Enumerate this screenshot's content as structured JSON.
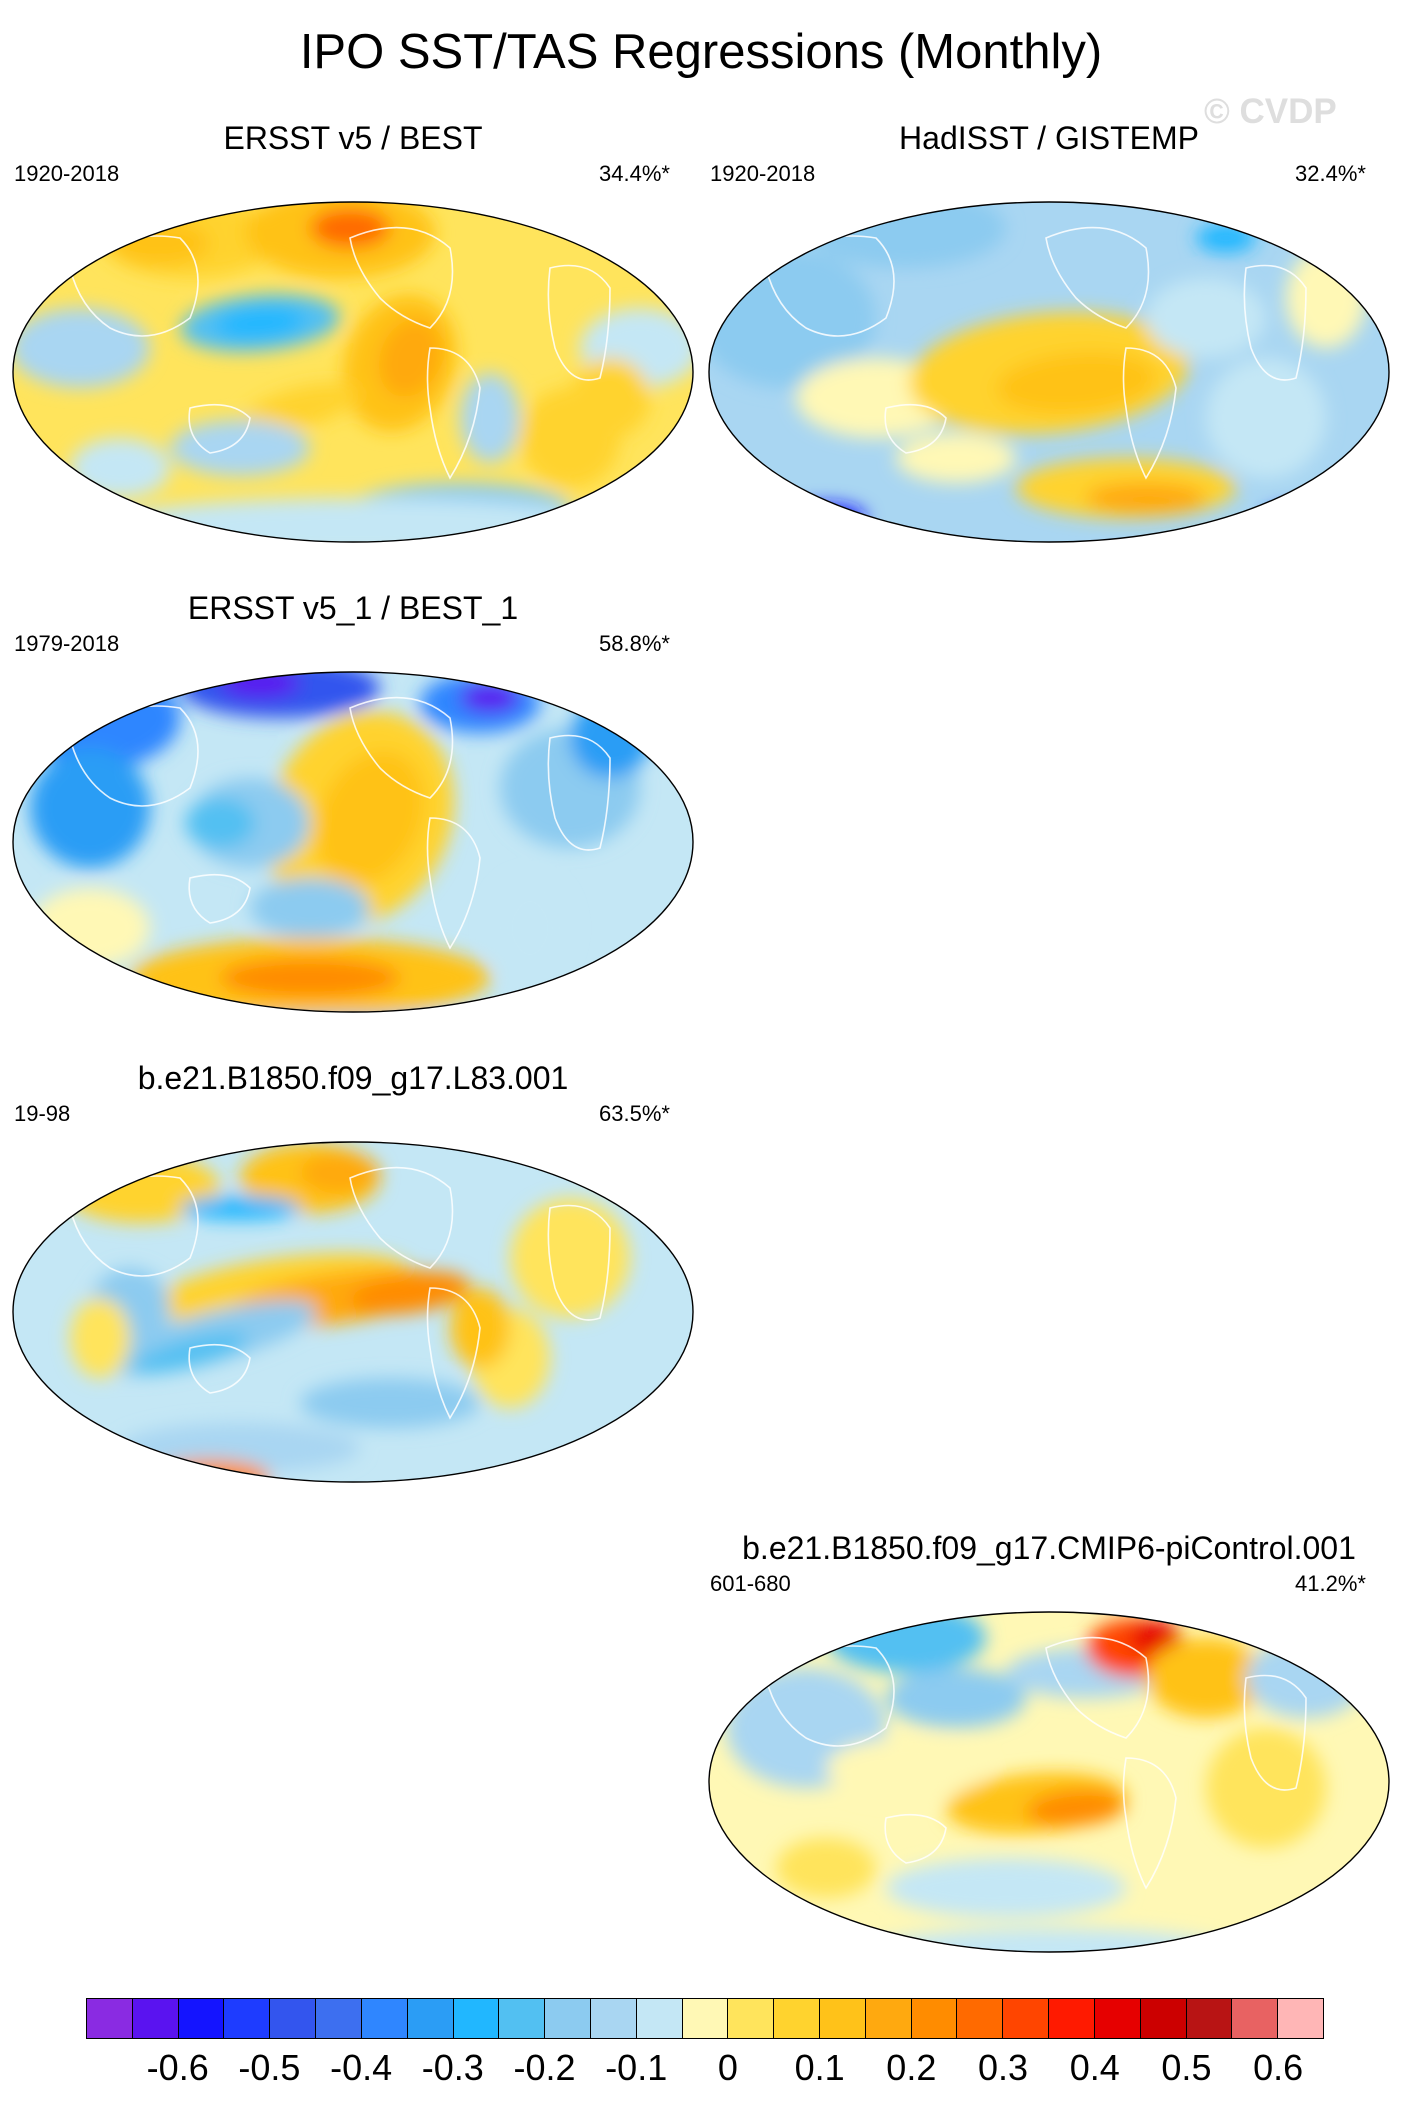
{
  "figure": {
    "title": "IPO SST/TAS Regressions (Monthly)",
    "watermark": "© CVDP"
  },
  "panels": [
    {
      "title": "ERSST v5 / BEST",
      "period": "1920-2018",
      "variance": "34.4%*"
    },
    {
      "title": "HadISST / GISTEMP",
      "period": "1920-2018",
      "variance": "32.4%*"
    },
    {
      "title": "ERSST v5_1 / BEST_1",
      "period": "1979-2018",
      "variance": "58.8%*"
    },
    {
      "title": "b.e21.B1850.f09_g17.L83.001",
      "period": "19-98",
      "variance": "63.5%*"
    },
    {
      "title": "b.e21.B1850.f09_g17.CMIP6-piControl.001",
      "period": "601-680",
      "variance": "41.2%*"
    }
  ],
  "colorbar": {
    "colors": [
      "#8a2be2",
      "#5a13f0",
      "#1414ff",
      "#1e3cff",
      "#3355ee",
      "#3d6ff0",
      "#2f86ff",
      "#2b9df5",
      "#21b7ff",
      "#52c0f2",
      "#8ccbf0",
      "#a9d6f2",
      "#c4e7f5",
      "#fff8b5",
      "#ffe45c",
      "#ffd32e",
      "#ffc219",
      "#ffa90f",
      "#ff8c00",
      "#ff6a00",
      "#ff4500",
      "#ff1a00",
      "#e60000",
      "#cc0000",
      "#b81414",
      "#e86262",
      "#ffb6b6"
    ],
    "labels": [
      "-0.6",
      "-0.5",
      "-0.4",
      "-0.3",
      "-0.2",
      "-0.1",
      "0",
      "0.1",
      "0.2",
      "0.3",
      "0.4",
      "0.5",
      "0.6"
    ]
  }
}
